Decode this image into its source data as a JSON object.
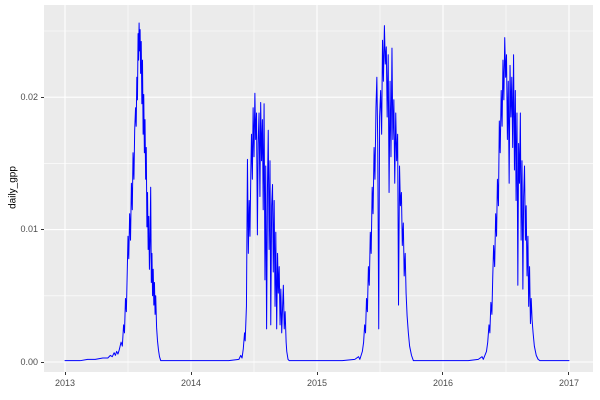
{
  "chart_data": {
    "type": "line",
    "title": "",
    "xlabel": "",
    "ylabel": "daily_gpp",
    "legend": "none",
    "theme": "ggplot-grey",
    "panel_bg": "#EBEBEB",
    "grid_color": "#FFFFFF",
    "line_color": "#0000FF",
    "tick_label_color": "#4D4D4D",
    "axis_title_color": "#000000",
    "x_domain": [
      2012.8333,
      2017.1905
    ],
    "y_domain": [
      -0.000755,
      0.02696
    ],
    "x_ticks": [
      {
        "t": 2013,
        "label": "2013"
      },
      {
        "t": 2014,
        "label": "2014"
      },
      {
        "t": 2015,
        "label": "2015"
      },
      {
        "t": 2016,
        "label": "2016"
      },
      {
        "t": 2017,
        "label": "2017"
      }
    ],
    "x_minor": [
      2013.5,
      2014.5,
      2015.5,
      2016.5
    ],
    "y_ticks": [
      {
        "v": 0.0,
        "label": "0.00"
      },
      {
        "v": 0.01,
        "label": "0.01"
      },
      {
        "v": 0.02,
        "label": "0.02"
      }
    ],
    "y_minor": [
      0.005,
      0.015,
      0.025
    ],
    "series_name": "daily_gpp",
    "points": [
      [
        2013.0,
        0.0001
      ],
      [
        2013.06,
        0.0001
      ],
      [
        2013.12,
        0.0001
      ],
      [
        2013.18,
        0.0002
      ],
      [
        2013.24,
        0.0002
      ],
      [
        2013.3,
        0.0003
      ],
      [
        2013.34,
        0.0003
      ],
      [
        2013.36,
        0.0005
      ],
      [
        2013.375,
        0.0004
      ],
      [
        2013.39,
        0.0007
      ],
      [
        2013.4,
        0.0005
      ],
      [
        2013.41,
        0.0008
      ],
      [
        2013.42,
        0.0006
      ],
      [
        2013.43,
        0.0009
      ],
      [
        2013.445,
        0.0015
      ],
      [
        2013.455,
        0.0012
      ],
      [
        2013.465,
        0.0028
      ],
      [
        2013.472,
        0.0022
      ],
      [
        2013.48,
        0.0048
      ],
      [
        2013.487,
        0.0038
      ],
      [
        2013.494,
        0.0068
      ],
      [
        2013.5,
        0.0095
      ],
      [
        2013.506,
        0.0078
      ],
      [
        2013.513,
        0.0112
      ],
      [
        2013.52,
        0.0092
      ],
      [
        2013.527,
        0.0135
      ],
      [
        2013.534,
        0.0115
      ],
      [
        2013.54,
        0.0158
      ],
      [
        2013.547,
        0.0138
      ],
      [
        2013.553,
        0.0175
      ],
      [
        2013.56,
        0.0192
      ],
      [
        2013.565,
        0.0178
      ],
      [
        2013.57,
        0.0215
      ],
      [
        2013.575,
        0.0198
      ],
      [
        2013.58,
        0.0248
      ],
      [
        2013.584,
        0.0228
      ],
      [
        2013.588,
        0.0256
      ],
      [
        2013.592,
        0.0235
      ],
      [
        2013.596,
        0.0251
      ],
      [
        2013.6,
        0.0218
      ],
      [
        2013.605,
        0.0242
      ],
      [
        2013.61,
        0.0195
      ],
      [
        2013.615,
        0.0228
      ],
      [
        2013.62,
        0.0172
      ],
      [
        2013.625,
        0.0202
      ],
      [
        2013.63,
        0.0158
      ],
      [
        2013.635,
        0.0183
      ],
      [
        2013.64,
        0.0138
      ],
      [
        2013.645,
        0.0162
      ],
      [
        2013.65,
        0.0102
      ],
      [
        2013.655,
        0.0128
      ],
      [
        2013.66,
        0.0085
      ],
      [
        2013.665,
        0.011
      ],
      [
        2013.67,
        0.007
      ],
      [
        2013.675,
        0.0092
      ],
      [
        2013.68,
        0.0132
      ],
      [
        2013.685,
        0.006
      ],
      [
        2013.69,
        0.0082
      ],
      [
        2013.695,
        0.005
      ],
      [
        2013.7,
        0.007
      ],
      [
        2013.705,
        0.0043
      ],
      [
        2013.71,
        0.006
      ],
      [
        2013.715,
        0.0036
      ],
      [
        2013.72,
        0.005
      ],
      [
        2013.727,
        0.0026
      ],
      [
        2013.734,
        0.0016
      ],
      [
        2013.742,
        0.0009
      ],
      [
        2013.75,
        0.0004
      ],
      [
        2013.76,
        0.0001
      ],
      [
        2013.8,
        0.0001
      ],
      [
        2013.88,
        0.0001
      ],
      [
        2013.96,
        0.0001
      ],
      [
        2014.0,
        0.0001
      ],
      [
        2014.1,
        0.0001
      ],
      [
        2014.2,
        0.0001
      ],
      [
        2014.3,
        0.0001
      ],
      [
        2014.38,
        0.0002
      ],
      [
        2014.395,
        0.0005
      ],
      [
        2014.405,
        0.0003
      ],
      [
        2014.415,
        0.001
      ],
      [
        2014.425,
        0.0022
      ],
      [
        2014.43,
        0.0016
      ],
      [
        2014.44,
        0.0042
      ],
      [
        2014.448,
        0.0153
      ],
      [
        2014.455,
        0.0082
      ],
      [
        2014.462,
        0.0122
      ],
      [
        2014.468,
        0.0095
      ],
      [
        2014.475,
        0.0145
      ],
      [
        2014.48,
        0.0172
      ],
      [
        2014.487,
        0.0138
      ],
      [
        2014.493,
        0.0192
      ],
      [
        2014.5,
        0.0155
      ],
      [
        2014.507,
        0.0203
      ],
      [
        2014.513,
        0.0168
      ],
      [
        2014.52,
        0.0188
      ],
      [
        2014.527,
        0.0096
      ],
      [
        2014.533,
        0.0165
      ],
      [
        2014.54,
        0.0188
      ],
      [
        2014.547,
        0.0125
      ],
      [
        2014.553,
        0.0196
      ],
      [
        2014.56,
        0.0152
      ],
      [
        2014.567,
        0.0183
      ],
      [
        2014.573,
        0.0115
      ],
      [
        2014.58,
        0.0195
      ],
      [
        2014.587,
        0.0062
      ],
      [
        2014.593,
        0.0148
      ],
      [
        2014.6,
        0.0025
      ],
      [
        2014.607,
        0.0132
      ],
      [
        2014.613,
        0.0175
      ],
      [
        2014.62,
        0.0085
      ],
      [
        2014.627,
        0.0152
      ],
      [
        2014.633,
        0.0028
      ],
      [
        2014.64,
        0.0118
      ],
      [
        2014.647,
        0.0134
      ],
      [
        2014.653,
        0.0068
      ],
      [
        2014.66,
        0.0122
      ],
      [
        2014.667,
        0.0042
      ],
      [
        2014.673,
        0.0098
      ],
      [
        2014.68,
        0.0025
      ],
      [
        2014.687,
        0.0082
      ],
      [
        2014.693,
        0.0052
      ],
      [
        2014.7,
        0.0072
      ],
      [
        2014.707,
        0.0028
      ],
      [
        2014.713,
        0.0055
      ],
      [
        2014.72,
        0.0022
      ],
      [
        2014.727,
        0.0042
      ],
      [
        2014.733,
        0.0058
      ],
      [
        2014.74,
        0.0025
      ],
      [
        2014.747,
        0.0038
      ],
      [
        2014.755,
        0.0015
      ],
      [
        2014.76,
        0.0008
      ],
      [
        2014.77,
        0.0002
      ],
      [
        2014.78,
        0.0001
      ],
      [
        2014.86,
        0.0001
      ],
      [
        2014.94,
        0.0001
      ],
      [
        2015.0,
        0.0001
      ],
      [
        2015.1,
        0.0001
      ],
      [
        2015.2,
        0.0001
      ],
      [
        2015.3,
        0.0002
      ],
      [
        2015.33,
        0.0004
      ],
      [
        2015.34,
        0.0002
      ],
      [
        2015.36,
        0.0008
      ],
      [
        2015.37,
        0.0015
      ],
      [
        2015.378,
        0.0028
      ],
      [
        2015.385,
        0.0022
      ],
      [
        2015.393,
        0.0048
      ],
      [
        2015.4,
        0.0038
      ],
      [
        2015.408,
        0.0072
      ],
      [
        2015.415,
        0.0058
      ],
      [
        2015.423,
        0.0098
      ],
      [
        2015.43,
        0.0082
      ],
      [
        2015.438,
        0.0132
      ],
      [
        2015.445,
        0.0112
      ],
      [
        2015.453,
        0.0162
      ],
      [
        2015.46,
        0.0138
      ],
      [
        2015.468,
        0.0192
      ],
      [
        2015.475,
        0.0215
      ],
      [
        2015.482,
        0.0165
      ],
      [
        2015.49,
        0.0025
      ],
      [
        2015.497,
        0.0185
      ],
      [
        2015.505,
        0.0205
      ],
      [
        2015.513,
        0.0172
      ],
      [
        2015.52,
        0.0243
      ],
      [
        2015.527,
        0.0212
      ],
      [
        2015.535,
        0.0254
      ],
      [
        2015.542,
        0.0225
      ],
      [
        2015.55,
        0.0238
      ],
      [
        2015.557,
        0.0185
      ],
      [
        2015.565,
        0.0232
      ],
      [
        2015.572,
        0.0128
      ],
      [
        2015.58,
        0.0212
      ],
      [
        2015.587,
        0.0155
      ],
      [
        2015.595,
        0.0237
      ],
      [
        2015.602,
        0.0168
      ],
      [
        2015.61,
        0.0198
      ],
      [
        2015.617,
        0.0135
      ],
      [
        2015.625,
        0.0188
      ],
      [
        2015.632,
        0.0152
      ],
      [
        2015.64,
        0.0172
      ],
      [
        2015.647,
        0.0043
      ],
      [
        2015.655,
        0.0148
      ],
      [
        2015.662,
        0.0118
      ],
      [
        2015.67,
        0.0128
      ],
      [
        2015.677,
        0.0088
      ],
      [
        2015.685,
        0.0105
      ],
      [
        2015.692,
        0.0065
      ],
      [
        2015.7,
        0.0082
      ],
      [
        2015.707,
        0.0052
      ],
      [
        2015.715,
        0.0035
      ],
      [
        2015.725,
        0.0022
      ],
      [
        2015.735,
        0.0012
      ],
      [
        2015.75,
        0.0005
      ],
      [
        2015.765,
        0.0001
      ],
      [
        2015.85,
        0.0001
      ],
      [
        2015.93,
        0.0001
      ],
      [
        2016.0,
        0.0001
      ],
      [
        2016.1,
        0.0001
      ],
      [
        2016.2,
        0.0001
      ],
      [
        2016.28,
        0.0002
      ],
      [
        2016.31,
        0.0004
      ],
      [
        2016.32,
        0.0002
      ],
      [
        2016.345,
        0.0008
      ],
      [
        2016.355,
        0.0015
      ],
      [
        2016.365,
        0.0028
      ],
      [
        2016.372,
        0.0022
      ],
      [
        2016.38,
        0.0045
      ],
      [
        2016.388,
        0.0036
      ],
      [
        2016.395,
        0.0065
      ],
      [
        2016.402,
        0.0088
      ],
      [
        2016.41,
        0.0072
      ],
      [
        2016.418,
        0.0112
      ],
      [
        2016.425,
        0.0095
      ],
      [
        2016.432,
        0.0138
      ],
      [
        2016.44,
        0.0118
      ],
      [
        2016.447,
        0.0182
      ],
      [
        2016.454,
        0.0158
      ],
      [
        2016.462,
        0.0205
      ],
      [
        2016.469,
        0.0178
      ],
      [
        2016.476,
        0.0228
      ],
      [
        2016.483,
        0.0198
      ],
      [
        2016.49,
        0.0245
      ],
      [
        2016.497,
        0.0215
      ],
      [
        2016.504,
        0.0232
      ],
      [
        2016.511,
        0.0168
      ],
      [
        2016.518,
        0.0212
      ],
      [
        2016.525,
        0.0135
      ],
      [
        2016.532,
        0.0224
      ],
      [
        2016.539,
        0.0185
      ],
      [
        2016.546,
        0.0215
      ],
      [
        2016.553,
        0.0162
      ],
      [
        2016.56,
        0.0232
      ],
      [
        2016.567,
        0.0145
      ],
      [
        2016.574,
        0.0205
      ],
      [
        2016.58,
        0.0122
      ],
      [
        2016.587,
        0.0188
      ],
      [
        2016.594,
        0.0058
      ],
      [
        2016.6,
        0.0165
      ],
      [
        2016.607,
        0.0135
      ],
      [
        2016.614,
        0.0188
      ],
      [
        2016.62,
        0.0092
      ],
      [
        2016.627,
        0.0152
      ],
      [
        2016.634,
        0.0055
      ],
      [
        2016.64,
        0.0125
      ],
      [
        2016.647,
        0.0148
      ],
      [
        2016.654,
        0.0092
      ],
      [
        2016.66,
        0.0118
      ],
      [
        2016.667,
        0.0065
      ],
      [
        2016.674,
        0.0095
      ],
      [
        2016.68,
        0.0042
      ],
      [
        2016.687,
        0.0072
      ],
      [
        2016.694,
        0.0029
      ],
      [
        2016.7,
        0.0048
      ],
      [
        2016.707,
        0.0032
      ],
      [
        2016.715,
        0.0022
      ],
      [
        2016.725,
        0.0012
      ],
      [
        2016.74,
        0.0005
      ],
      [
        2016.755,
        0.0002
      ],
      [
        2016.77,
        0.0001
      ],
      [
        2016.85,
        0.0001
      ],
      [
        2016.93,
        0.0001
      ],
      [
        2017.0,
        0.0001
      ]
    ]
  }
}
